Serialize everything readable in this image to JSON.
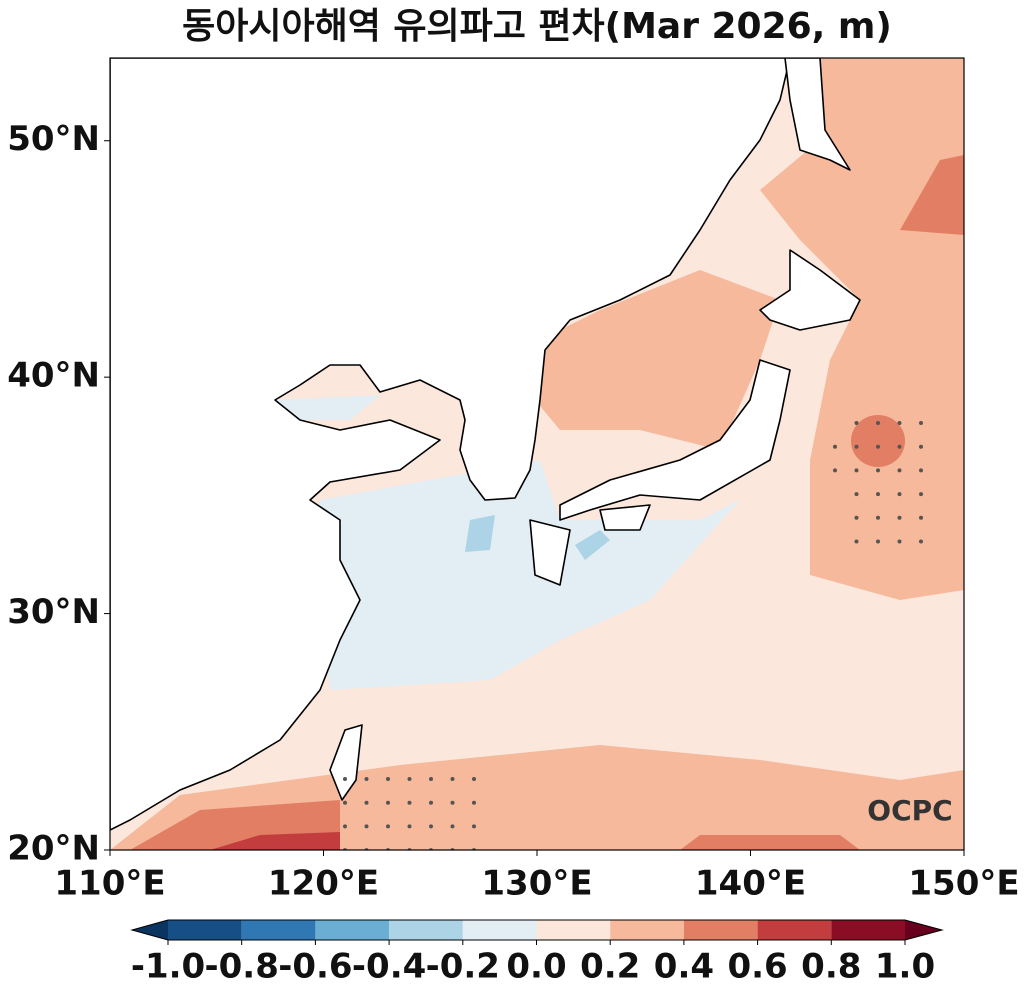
{
  "title": "동아시아해역 유의파고 편차(Mar 2026, m)",
  "map": {
    "xlim": [
      110,
      150
    ],
    "ylim": [
      20,
      53.5
    ],
    "xticks": [
      {
        "value": 110,
        "label": "110°E"
      },
      {
        "value": 120,
        "label": "120°E"
      },
      {
        "value": 130,
        "label": "130°E"
      },
      {
        "value": 140,
        "label": "140°E"
      },
      {
        "value": 150,
        "label": "150°E"
      }
    ],
    "yticks": [
      {
        "value": 20,
        "label": "20°N"
      },
      {
        "value": 30,
        "label": "30°N"
      },
      {
        "value": 40,
        "label": "40°N"
      },
      {
        "value": 50,
        "label": "50°N"
      }
    ]
  },
  "colorbar": {
    "ticks": [
      {
        "value": -1,
        "label": "-1.0"
      },
      -0.8,
      -0.6,
      -0.4,
      -0.2,
      {
        "value": 0,
        "label": "0.0"
      },
      0.2,
      0.4,
      0.6,
      0.8,
      {
        "value": 1,
        "label": "1.0"
      }
    ],
    "colors": [
      "#164f86",
      "#2f78b4",
      "#6aaed3",
      "#acd3e6",
      "#e2eef4",
      "#fbe7dc",
      "#f6b99b",
      "#e27e64",
      "#c33d3e",
      "#8b0d25"
    ],
    "under_color": "#0b3461",
    "over_color": "#67001f"
  },
  "logo": "OCPC"
}
